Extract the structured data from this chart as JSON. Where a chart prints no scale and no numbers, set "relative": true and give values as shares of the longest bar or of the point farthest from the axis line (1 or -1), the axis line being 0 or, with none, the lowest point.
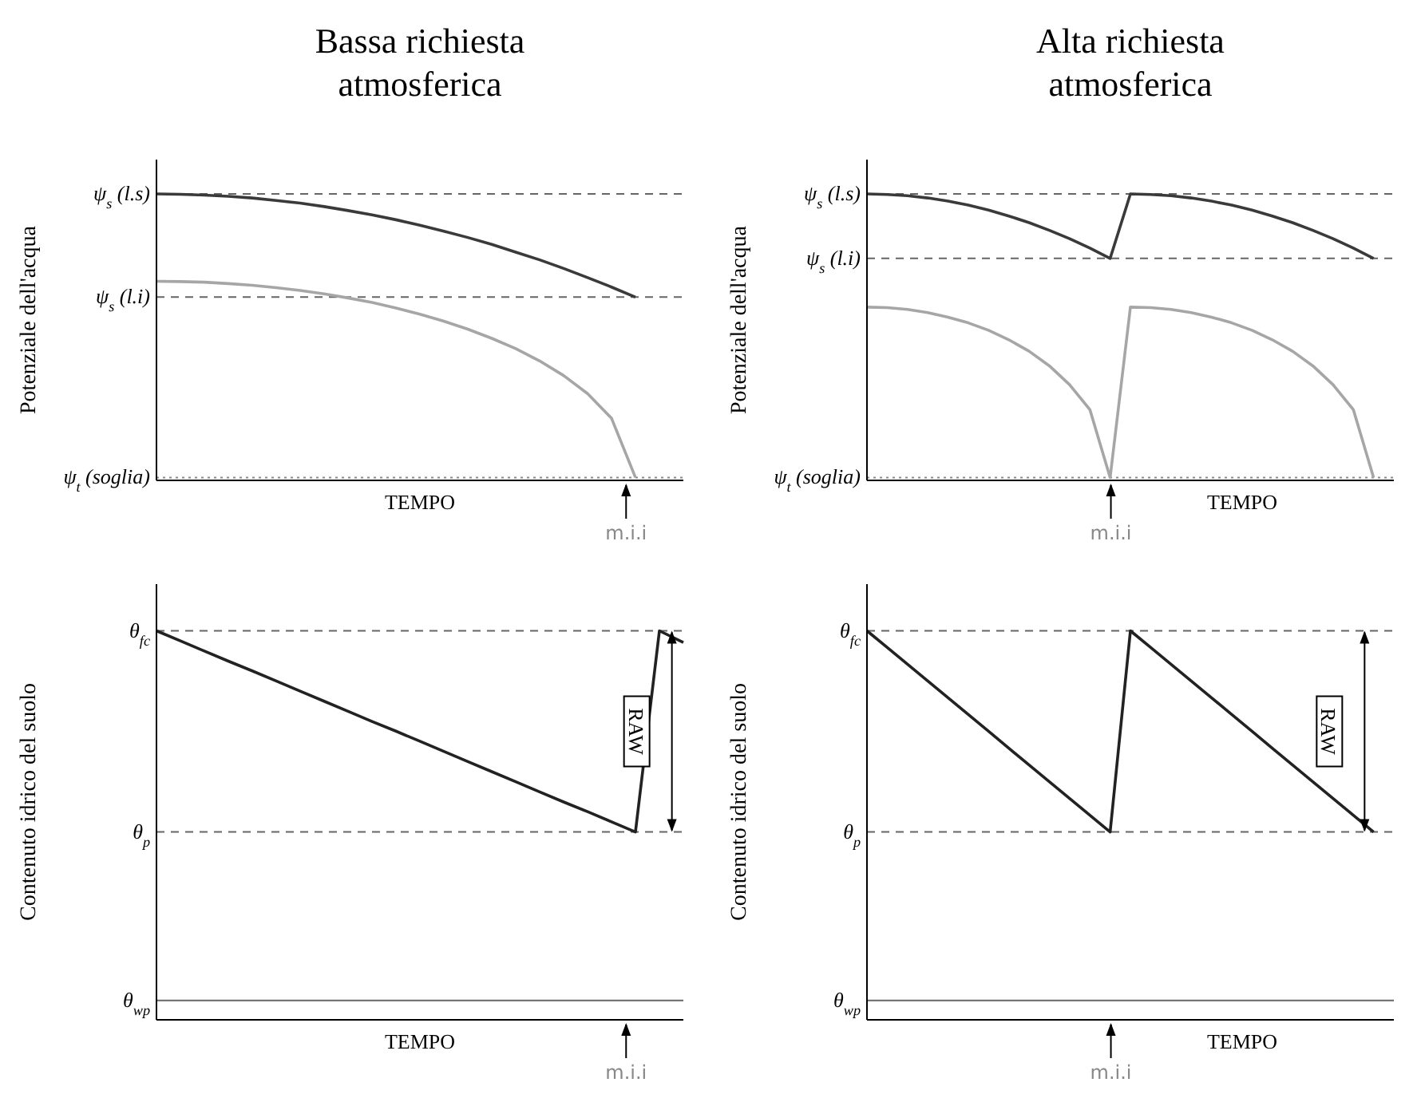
{
  "chart_data": [
    {
      "type": "line",
      "title": "Bassa richiesta atmosferica",
      "ylabel": "Potenziale dell'acqua",
      "xlabel": "TEMPO",
      "relative": true,
      "marker": "none",
      "categories": [
        null,
        null,
        null,
        null,
        null,
        null,
        null,
        null,
        null,
        null,
        null,
        null,
        null,
        null,
        null,
        null,
        null,
        null,
        null,
        null,
        null,
        null,
        null
      ],
      "series": [
        {
          "color": "#3a3a3a",
          "values": [
            1,
            0.999,
            0.996,
            0.992,
            0.986,
            0.977,
            0.968,
            0.956,
            0.942,
            0.927,
            0.91,
            0.891,
            0.87,
            0.848,
            0.824,
            0.797,
            0.77,
            0.74,
            0.708,
            0.675,
            0.64,
            null,
            null
          ]
        },
        {
          "color": "#a6a6a6",
          "values": [
            0.695,
            0.694,
            0.692,
            0.687,
            0.681,
            0.673,
            0.663,
            0.651,
            0.637,
            0.621,
            0.602,
            0.58,
            0.556,
            0.528,
            0.496,
            0.46,
            0.417,
            0.366,
            0.303,
            0.217,
            0.01,
            null,
            null
          ]
        }
      ],
      "ref_lines": [
        {
          "axis": "y",
          "value": 1,
          "label": "ψ$_{s}$ (l.s)",
          "line_style": "dashed",
          "color": "#666666"
        },
        {
          "axis": "y",
          "value": 0.64,
          "label": "ψ$_{s}$ (l.i)",
          "line_style": "dashed",
          "color": "#666666"
        },
        {
          "axis": "y",
          "value": 0.01,
          "label": "ψ$_{t}$ (soglia)",
          "line_style": "dotted",
          "color": "#888888"
        }
      ],
      "annotations": [
        "m.i.i"
      ]
    },
    {
      "type": "line",
      "title": "Alta richiesta atmosferica",
      "ylabel": "Potenziale dell'acqua",
      "xlabel": "TEMPO",
      "relative": true,
      "marker": "none",
      "categories": [
        null,
        null,
        null,
        null,
        null,
        null,
        null,
        null,
        null,
        null,
        null,
        null,
        null,
        null,
        null,
        null,
        null,
        null,
        null,
        null,
        null,
        null,
        null,
        null,
        null,
        null,
        null
      ],
      "series": [
        {
          "color": "#3a3a3a",
          "values": [
            1,
            0.998,
            0.994,
            0.986,
            0.975,
            0.961,
            0.944,
            0.923,
            0.9,
            0.873,
            0.844,
            0.811,
            0.775,
            1,
            0.998,
            0.994,
            0.986,
            0.975,
            0.961,
            0.944,
            0.923,
            0.9,
            0.873,
            0.844,
            0.811,
            0.775,
            null
          ]
        },
        {
          "color": "#a6a6a6",
          "values": [
            0.605,
            0.603,
            0.597,
            0.586,
            0.57,
            0.55,
            0.524,
            0.491,
            0.451,
            0.4,
            0.334,
            0.247,
            0.01,
            0.605,
            0.603,
            0.597,
            0.586,
            0.57,
            0.55,
            0.524,
            0.491,
            0.451,
            0.4,
            0.334,
            0.247,
            0.01,
            null
          ]
        }
      ],
      "ref_lines": [
        {
          "axis": "y",
          "value": 1,
          "label": "ψ$_{s}$ (l.s)",
          "line_style": "dashed",
          "color": "#666666"
        },
        {
          "axis": "y",
          "value": 0.775,
          "label": "ψ$_{s}$ (l.i)",
          "line_style": "dashed",
          "color": "#666666"
        },
        {
          "axis": "y",
          "value": 0.01,
          "label": "ψ$_{t}$ (soglia)",
          "line_style": "dotted",
          "color": "#888888"
        }
      ],
      "annotations": [
        "m.i.i"
      ]
    },
    {
      "type": "line",
      "ylabel": "Contenuto idrico del suolo",
      "xlabel": "TEMPO",
      "relative": true,
      "marker": "none",
      "categories": [
        null,
        null,
        null,
        null,
        null,
        null,
        null,
        null,
        null,
        null,
        null,
        null,
        null,
        null,
        null,
        null,
        null,
        null,
        null,
        null,
        null,
        null,
        null
      ],
      "series": [
        {
          "color": "#222222",
          "values": [
            1,
            0.974,
            0.948,
            0.922,
            0.897,
            0.871,
            0.845,
            0.819,
            0.793,
            0.767,
            0.742,
            0.716,
            0.69,
            0.664,
            0.638,
            0.612,
            0.586,
            0.56,
            0.535,
            0.509,
            0.483,
            1,
            0.97
          ]
        }
      ],
      "ref_lines": [
        {
          "axis": "y",
          "value": 1,
          "label": "θ$_{fc}$",
          "line_style": "dashed",
          "color": "#666666"
        },
        {
          "axis": "y",
          "value": 0.483,
          "label": "θ$_{p}$",
          "line_style": "dashed",
          "color": "#666666"
        },
        {
          "axis": "y",
          "value": 0.05,
          "label": "θ$_{wp}$",
          "line_style": "solid",
          "color": "#666666"
        }
      ],
      "annotations": [
        "m.i.i",
        "RAW"
      ]
    },
    {
      "type": "line",
      "ylabel": "Contenuto idrico del suolo",
      "xlabel": "TEMPO",
      "relative": true,
      "marker": "none",
      "categories": [
        null,
        null,
        null,
        null,
        null,
        null,
        null,
        null,
        null,
        null,
        null,
        null,
        null,
        null,
        null,
        null,
        null,
        null,
        null,
        null,
        null,
        null,
        null,
        null,
        null,
        null,
        null
      ],
      "series": [
        {
          "color": "#222222",
          "values": [
            1,
            0.957,
            0.914,
            0.871,
            0.828,
            0.785,
            0.742,
            0.698,
            0.655,
            0.612,
            0.569,
            0.526,
            0.483,
            1,
            0.957,
            0.914,
            0.871,
            0.828,
            0.785,
            0.742,
            0.698,
            0.655,
            0.612,
            0.569,
            0.526,
            0.483,
            null
          ]
        }
      ],
      "ref_lines": [
        {
          "axis": "y",
          "value": 1,
          "label": "θ$_{fc}$",
          "line_style": "dashed",
          "color": "#666666"
        },
        {
          "axis": "y",
          "value": 0.483,
          "label": "θ$_{p}$",
          "line_style": "dashed",
          "color": "#666666"
        },
        {
          "axis": "y",
          "value": 0.05,
          "label": "θ$_{wp}$",
          "line_style": "solid",
          "color": "#666666"
        }
      ],
      "annotations": [
        "m.i.i",
        "RAW"
      ]
    }
  ]
}
